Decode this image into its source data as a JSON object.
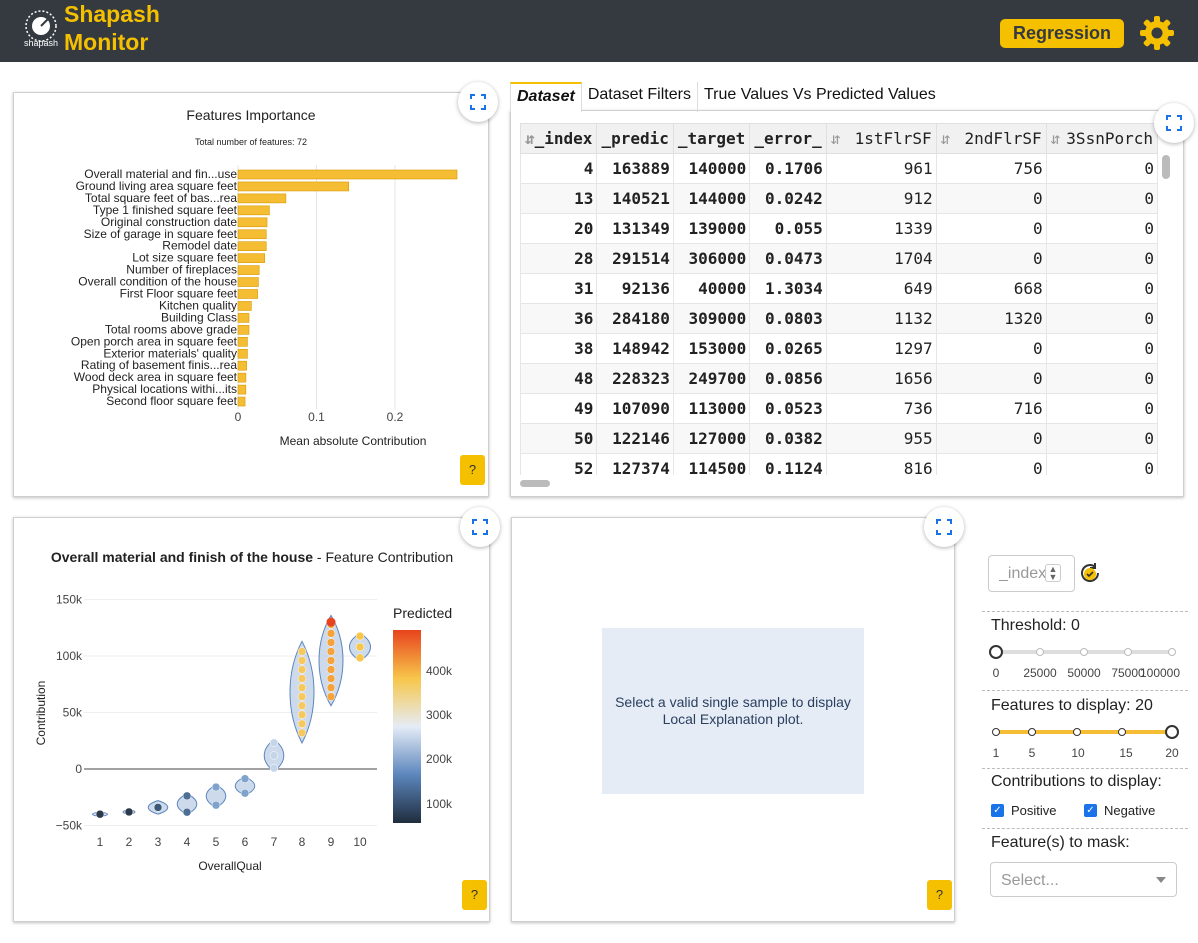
{
  "header": {
    "logo_text": "shapash",
    "title": "Shapash\nMonitor",
    "mode_button": "Regression",
    "settings_icon": "gear-icon"
  },
  "feature_importance": {
    "help": "?",
    "chart_data": {
      "type": "bar",
      "orientation": "horizontal",
      "title": "Features Importance",
      "subtitle": "Total number of features: 72",
      "xlabel": "Mean absolute Contribution",
      "xticks": [
        "0",
        "0.1",
        "0.2"
      ],
      "xlim": [
        0,
        0.29
      ],
      "categories": [
        "Overall material and fin...use",
        "Ground living area square feet",
        "Total square feet of bas...rea",
        "Type 1 finished square feet",
        "Original construction date",
        "Size of garage in square feet",
        "Remodel date",
        "Lot size square feet",
        "Number of fireplaces",
        "Overall condition of the house",
        "First Floor square feet",
        "Kitchen quality",
        "Building Class",
        "Total rooms above grade",
        "Open porch area in square feet",
        "Exterior materials' quality",
        "Rating of basement finis...rea",
        "Wood deck area in square feet",
        "Physical locations withi...its",
        "Second floor square feet"
      ],
      "values": [
        0.279,
        0.141,
        0.061,
        0.04,
        0.037,
        0.036,
        0.036,
        0.034,
        0.027,
        0.026,
        0.025,
        0.017,
        0.014,
        0.014,
        0.012,
        0.012,
        0.011,
        0.01,
        0.01,
        0.009
      ],
      "color": "#f4bd33",
      "grid": true
    }
  },
  "dataset_panel": {
    "tabs": [
      "Dataset",
      "Dataset Filters",
      "True Values Vs Predicted Values"
    ],
    "columns": [
      "_index_",
      "_predict_",
      "_target_",
      "_error_",
      "1stFlrSF",
      "2ndFlrSF",
      "3SsnPorch"
    ],
    "columns_display": [
      "_index",
      "_predic",
      "_target",
      "_error_",
      "1stFlrSF",
      "2ndFlrSF",
      "3SsnPorch"
    ],
    "rows": [
      [
        "4",
        "163889",
        "140000",
        "0.1706",
        "961",
        "756",
        "0"
      ],
      [
        "13",
        "140521",
        "144000",
        "0.0242",
        "912",
        "0",
        "0"
      ],
      [
        "20",
        "131349",
        "139000",
        "0.055",
        "1339",
        "0",
        "0"
      ],
      [
        "28",
        "291514",
        "306000",
        "0.0473",
        "1704",
        "0",
        "0"
      ],
      [
        "31",
        "92136",
        "40000",
        "1.3034",
        "649",
        "668",
        "0"
      ],
      [
        "36",
        "284180",
        "309000",
        "0.0803",
        "1132",
        "1320",
        "0"
      ],
      [
        "38",
        "148942",
        "153000",
        "0.0265",
        "1297",
        "0",
        "0"
      ],
      [
        "48",
        "228323",
        "249700",
        "0.0856",
        "1656",
        "0",
        "0"
      ],
      [
        "49",
        "107090",
        "113000",
        "0.0523",
        "736",
        "716",
        "0"
      ],
      [
        "50",
        "122146",
        "127000",
        "0.0382",
        "955",
        "0",
        "0"
      ],
      [
        "52",
        "127374",
        "114500",
        "0.1124",
        "816",
        "0",
        "0"
      ]
    ]
  },
  "feature_contribution": {
    "help": "?",
    "title_bold": "Overall material and finish of the house",
    "title_rest": " - Feature Contribution",
    "chart_data": {
      "type": "scatter",
      "subtype": "violin",
      "xlabel": "OverallQual",
      "ylabel": "Contribution",
      "x_categories": [
        "1",
        "2",
        "3",
        "4",
        "5",
        "6",
        "7",
        "8",
        "9",
        "10"
      ],
      "yticks": [
        "150k",
        "100k",
        "50k",
        "0",
        "−50k"
      ],
      "ylim": [
        -52000,
        152000
      ],
      "median_contribution": [
        -40000,
        -38000,
        -34000,
        -31000,
        -24000,
        -15000,
        12000,
        68000,
        96000,
        108000
      ],
      "colorbar": {
        "title": "Predicted",
        "ticks": [
          "400k",
          "300k",
          "200k",
          "100k"
        ]
      }
    }
  },
  "local_explanation": {
    "message": "Select a valid single sample to display Local Explanation plot.",
    "help": "?"
  },
  "controls": {
    "index_placeholder": "_index_",
    "threshold_label": "Threshold: 0",
    "threshold": {
      "value": 0,
      "min": 0,
      "max": 100000,
      "ticks": [
        "0",
        "25000",
        "50000",
        "75000",
        "100000"
      ]
    },
    "features_label": "Features to display: 20",
    "features": {
      "value": 20,
      "min": 1,
      "max": 20,
      "ticks": [
        "1",
        "5",
        "10",
        "15",
        "20"
      ]
    },
    "contributions_label": "Contributions to display:",
    "positive_label": "Positive",
    "negative_label": "Negative",
    "positive_checked": true,
    "negative_checked": true,
    "mask_label": "Feature(s) to mask:",
    "mask_placeholder": "Select..."
  },
  "colors": {
    "accent": "#f4c000",
    "header_bg": "#343a40",
    "bar": "#f4bd33",
    "local_bg": "#e5ecf6"
  }
}
